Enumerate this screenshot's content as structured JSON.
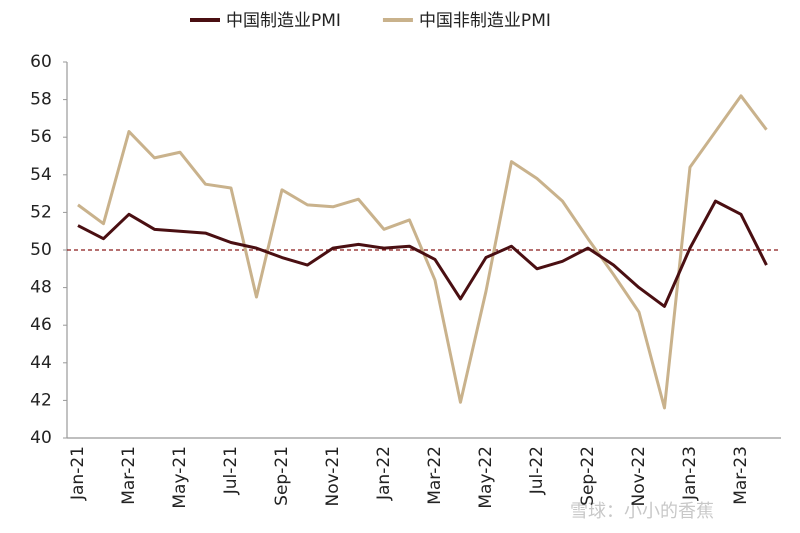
{
  "chart_data": {
    "type": "line",
    "categories": [
      "Jan-21",
      null,
      "Mar-21",
      null,
      "May-21",
      null,
      "Jul-21",
      null,
      "Sep-21",
      null,
      "Nov-21",
      null,
      "Jan-22",
      null,
      "Mar-22",
      null,
      "May-22",
      null,
      "Jul-22",
      null,
      "Sep-22",
      null,
      "Nov-22",
      null,
      "Jan-23",
      null,
      "Mar-23",
      null
    ],
    "series": [
      {
        "name": "中国制造业PMI",
        "color": "#4a0f12",
        "values": [
          51.3,
          50.6,
          51.9,
          51.1,
          51.0,
          50.9,
          50.4,
          50.1,
          49.6,
          49.2,
          50.1,
          50.3,
          50.1,
          50.2,
          49.5,
          47.4,
          49.6,
          50.2,
          49.0,
          49.4,
          50.1,
          49.2,
          48.0,
          47.0,
          50.1,
          52.6,
          51.9,
          49.2
        ]
      },
      {
        "name": "中国非制造业PMI",
        "color": "#c9b28c",
        "values": [
          52.4,
          51.4,
          56.3,
          54.9,
          55.2,
          53.5,
          53.3,
          47.5,
          53.2,
          52.4,
          52.3,
          52.7,
          51.1,
          51.6,
          48.4,
          41.9,
          47.8,
          54.7,
          53.8,
          52.6,
          50.6,
          48.7,
          46.7,
          41.6,
          54.4,
          56.3,
          58.2,
          56.4
        ]
      }
    ],
    "ylim": [
      40,
      60
    ],
    "yticks": [
      40,
      42,
      44,
      46,
      48,
      50,
      52,
      54,
      56,
      58,
      60
    ],
    "reference_line": 50,
    "reference_color": "#8b1a1a",
    "legend": "top",
    "annotations": [
      "雪球：小小的香蕉"
    ]
  }
}
